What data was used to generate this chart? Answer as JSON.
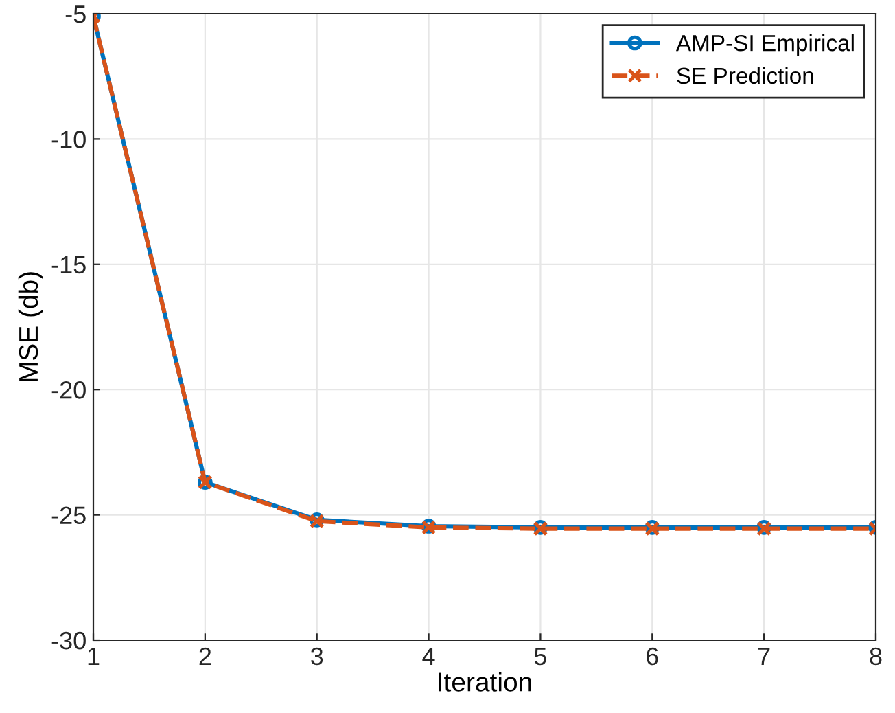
{
  "chart_data": {
    "type": "line",
    "xlabel": "Iteration",
    "ylabel": "MSE (db)",
    "x": [
      1,
      2,
      3,
      4,
      5,
      6,
      7,
      8
    ],
    "series": [
      {
        "name": "AMP-SI Empirical",
        "color": "#0072bd",
        "marker": "circle",
        "line_style": "solid",
        "values": [
          -5.1,
          -23.7,
          -25.2,
          -25.45,
          -25.5,
          -25.5,
          -25.5,
          -25.5
        ]
      },
      {
        "name": "SE Prediction",
        "color": "#d95319",
        "marker": "cross",
        "line_style": "dashed",
        "values": [
          -5.1,
          -23.7,
          -25.25,
          -25.5,
          -25.55,
          -25.55,
          -25.55,
          -25.55
        ]
      }
    ],
    "xlim": [
      1,
      8
    ],
    "ylim": [
      -30,
      -5
    ],
    "xticks": [
      1,
      2,
      3,
      4,
      5,
      6,
      7,
      8
    ],
    "yticks": [
      -30,
      -25,
      -20,
      -15,
      -10,
      -5
    ],
    "grid": true,
    "legend": "top right"
  }
}
